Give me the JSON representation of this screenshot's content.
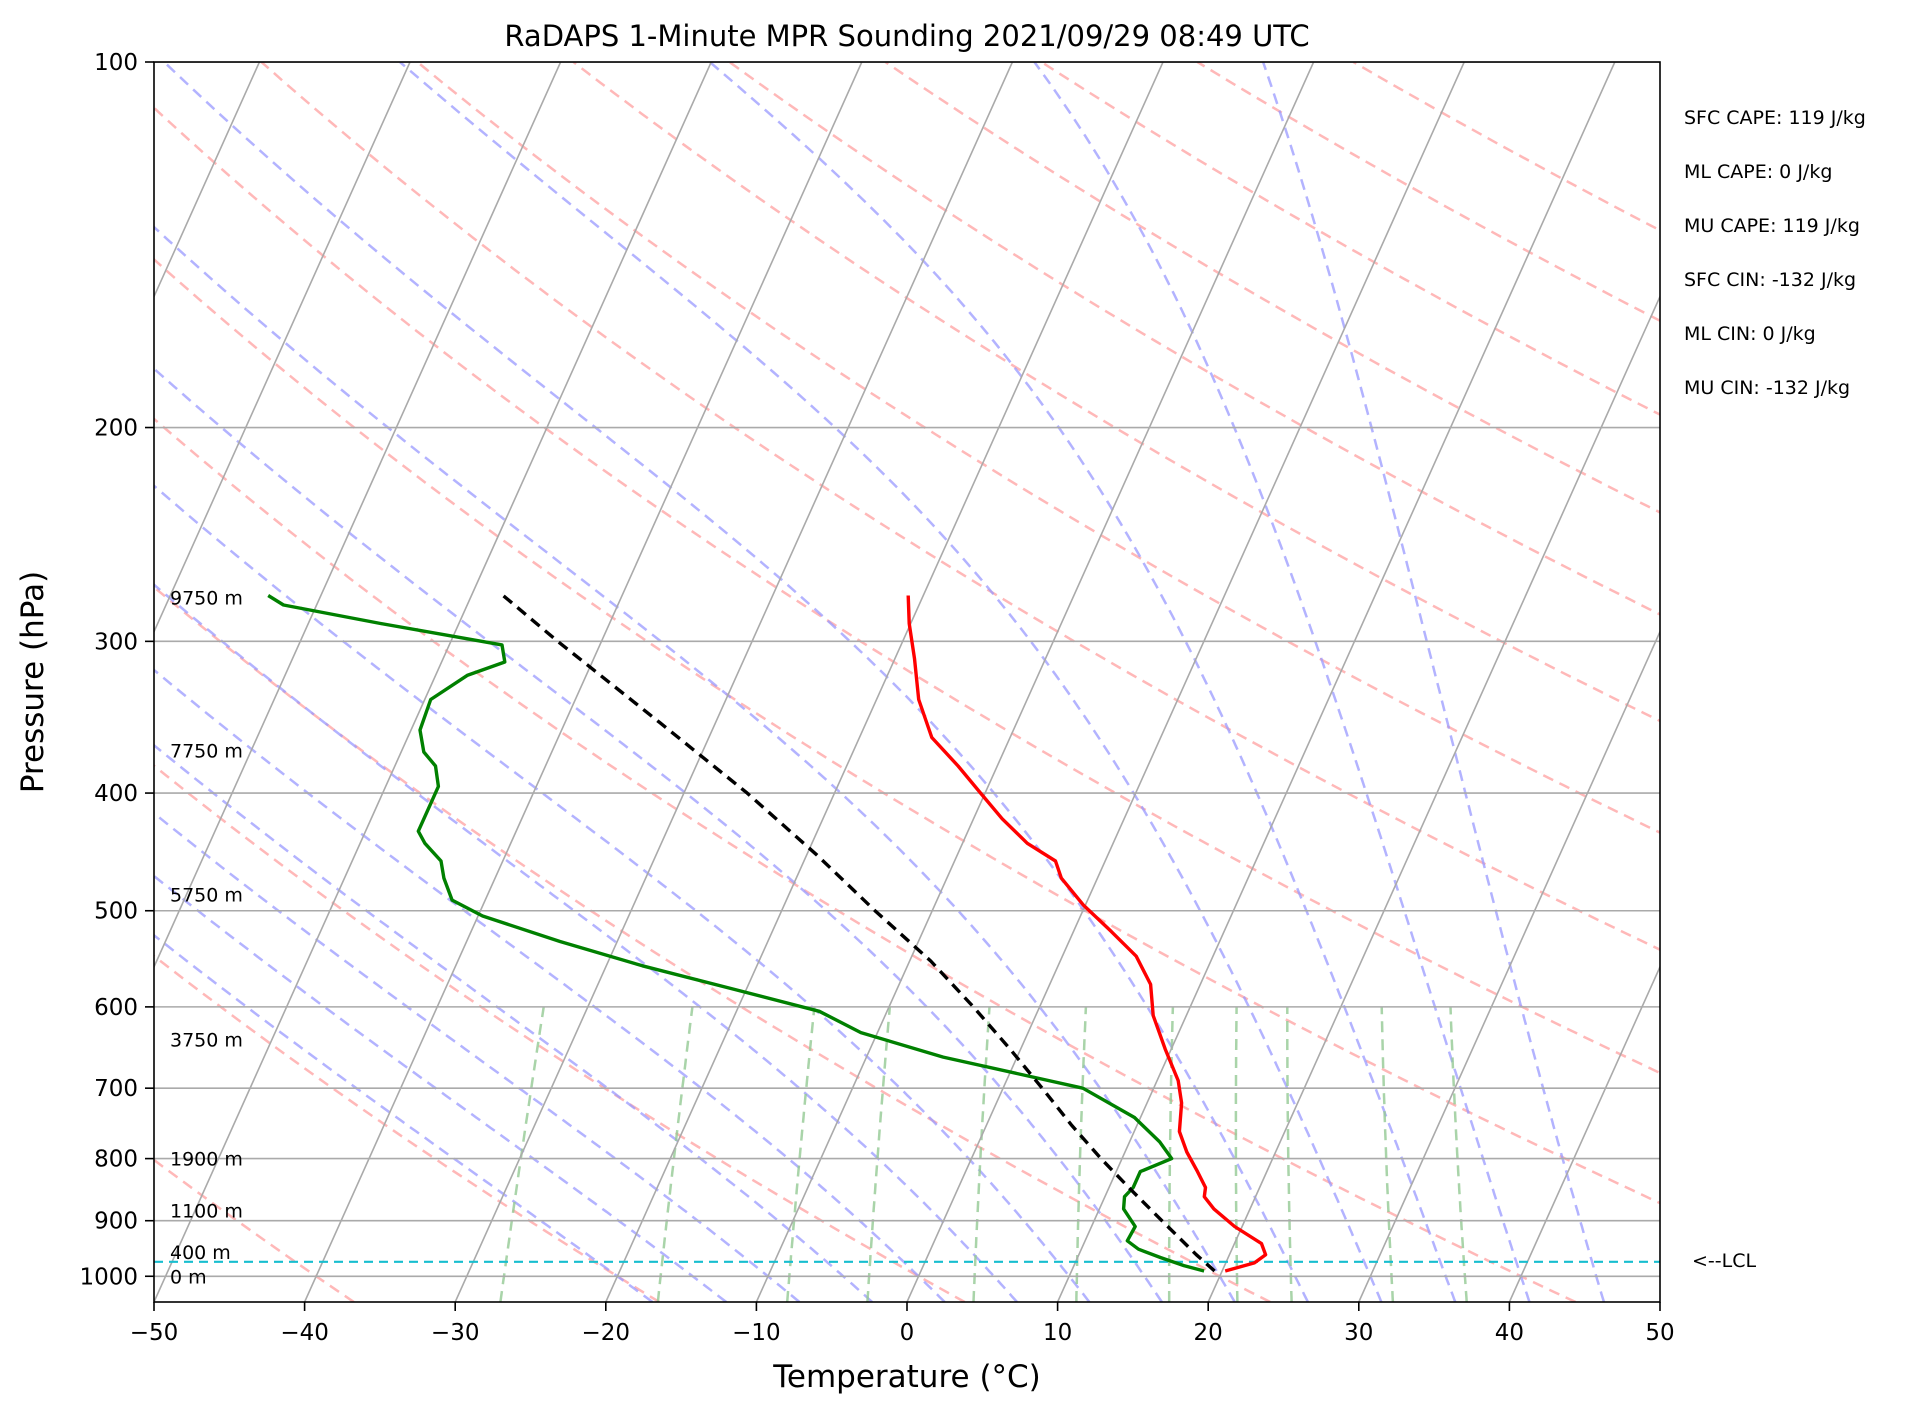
{
  "chart_data": {
    "type": "line",
    "title": "RaDAPS 1-Minute MPR Sounding 2021/09/29 08:49 UTC",
    "xlabel": "Temperature (°C)",
    "ylabel": "Pressure (hPa)",
    "xlim": [
      -50,
      50
    ],
    "ylim": [
      1050,
      100
    ],
    "y_scale": "log",
    "skew_t": true,
    "grid": true,
    "xticks": [
      -50,
      -40,
      -30,
      -20,
      -10,
      0,
      10,
      20,
      30,
      40,
      50
    ],
    "xtick_labels": [
      "−50",
      "−40",
      "−30",
      "−20",
      "−10",
      "0",
      "10",
      "20",
      "30",
      "40",
      "50"
    ],
    "yticks": [
      100,
      200,
      300,
      400,
      500,
      600,
      700,
      800,
      900,
      1000
    ],
    "ytick_labels": [
      "100",
      "200",
      "300",
      "400",
      "500",
      "600",
      "700",
      "800",
      "900",
      "1000"
    ],
    "colors": {
      "temperature": "#ff0000",
      "dewpoint": "#008000",
      "parcel": "#000000",
      "lcl": "#17becf",
      "dry_adiabat": "#ff9a9a",
      "moist_adiabat": "#9a9aff",
      "mixing_ratio": "#93c993",
      "isotherm": "#aaaaaa"
    },
    "series": [
      {
        "role": "temperature",
        "points": [
          [
            990,
            20.2
          ],
          [
            975,
            21.9
          ],
          [
            960,
            22.4
          ],
          [
            940,
            21.8
          ],
          [
            910,
            19.5
          ],
          [
            880,
            17.6
          ],
          [
            860,
            16.6
          ],
          [
            845,
            16.4
          ],
          [
            820,
            15.4
          ],
          [
            790,
            14.1
          ],
          [
            760,
            13.0
          ],
          [
            720,
            12.3
          ],
          [
            690,
            11.4
          ],
          [
            650,
            9.6
          ],
          [
            610,
            7.8
          ],
          [
            575,
            6.7
          ],
          [
            545,
            4.9
          ],
          [
            520,
            2.5
          ],
          [
            495,
            -0.1
          ],
          [
            470,
            -2.4
          ],
          [
            455,
            -3.3
          ],
          [
            440,
            -5.7
          ],
          [
            420,
            -8.1
          ],
          [
            400,
            -10.3
          ],
          [
            380,
            -12.6
          ],
          [
            360,
            -15.2
          ],
          [
            335,
            -17.2
          ],
          [
            310,
            -18.7
          ],
          [
            290,
            -20.1
          ],
          [
            275,
            -21.0
          ]
        ]
      },
      {
        "role": "dewpoint",
        "points": [
          [
            990,
            18.8
          ],
          [
            980,
            17.3
          ],
          [
            965,
            15.5
          ],
          [
            950,
            13.8
          ],
          [
            935,
            12.8
          ],
          [
            910,
            12.9
          ],
          [
            880,
            11.6
          ],
          [
            860,
            11.3
          ],
          [
            845,
            11.6
          ],
          [
            820,
            11.6
          ],
          [
            800,
            13.3
          ],
          [
            775,
            12.0
          ],
          [
            740,
            9.6
          ],
          [
            700,
            5.3
          ],
          [
            660,
            -4.9
          ],
          [
            630,
            -11.1
          ],
          [
            605,
            -14.5
          ],
          [
            580,
            -20.9
          ],
          [
            555,
            -27.6
          ],
          [
            530,
            -33.8
          ],
          [
            505,
            -39.7
          ],
          [
            490,
            -42.2
          ],
          [
            470,
            -43.4
          ],
          [
            455,
            -44.1
          ],
          [
            440,
            -45.7
          ],
          [
            430,
            -46.5
          ],
          [
            410,
            -46.5
          ],
          [
            395,
            -46.5
          ],
          [
            380,
            -47.3
          ],
          [
            370,
            -48.5
          ],
          [
            355,
            -49.4
          ],
          [
            335,
            -49.6
          ],
          [
            320,
            -47.9
          ],
          [
            312,
            -45.8
          ],
          [
            302,
            -46.5
          ],
          [
            290,
            -55.2
          ],
          [
            280,
            -62.2
          ],
          [
            275,
            -63.5
          ]
        ]
      },
      {
        "role": "parcel",
        "points": [
          [
            990,
            19.5
          ],
          [
            960,
            17.8
          ],
          [
            900,
            14.5
          ],
          [
            850,
            11.6
          ],
          [
            800,
            8.6
          ],
          [
            750,
            5.6
          ],
          [
            700,
            2.6
          ],
          [
            650,
            -0.7
          ],
          [
            600,
            -4.4
          ],
          [
            550,
            -8.6
          ],
          [
            500,
            -13.8
          ],
          [
            450,
            -19.3
          ],
          [
            400,
            -25.8
          ],
          [
            350,
            -33.7
          ],
          [
            300,
            -42.9
          ],
          [
            275,
            -47.9
          ]
        ]
      }
    ],
    "height_labels": [
      {
        "text": "0 m",
        "p": 1000
      },
      {
        "text": "400 m",
        "p": 955
      },
      {
        "text": "1100 m",
        "p": 883
      },
      {
        "text": "1900 m",
        "p": 800
      },
      {
        "text": "3750 m",
        "p": 638
      },
      {
        "text": "5750 m",
        "p": 485
      },
      {
        "text": "7750 m",
        "p": 369
      },
      {
        "text": "9750 m",
        "p": 276
      }
    ],
    "lcl": {
      "p": 973,
      "label": "<--LCL"
    },
    "indices": [
      "SFC CAPE: 119 J/kg",
      "ML CAPE: 0 J/kg",
      "MU CAPE: 119 J/kg",
      "SFC CIN: -132 J/kg",
      "ML CIN: 0 J/kg",
      "MU CIN: -132 J/kg"
    ]
  }
}
